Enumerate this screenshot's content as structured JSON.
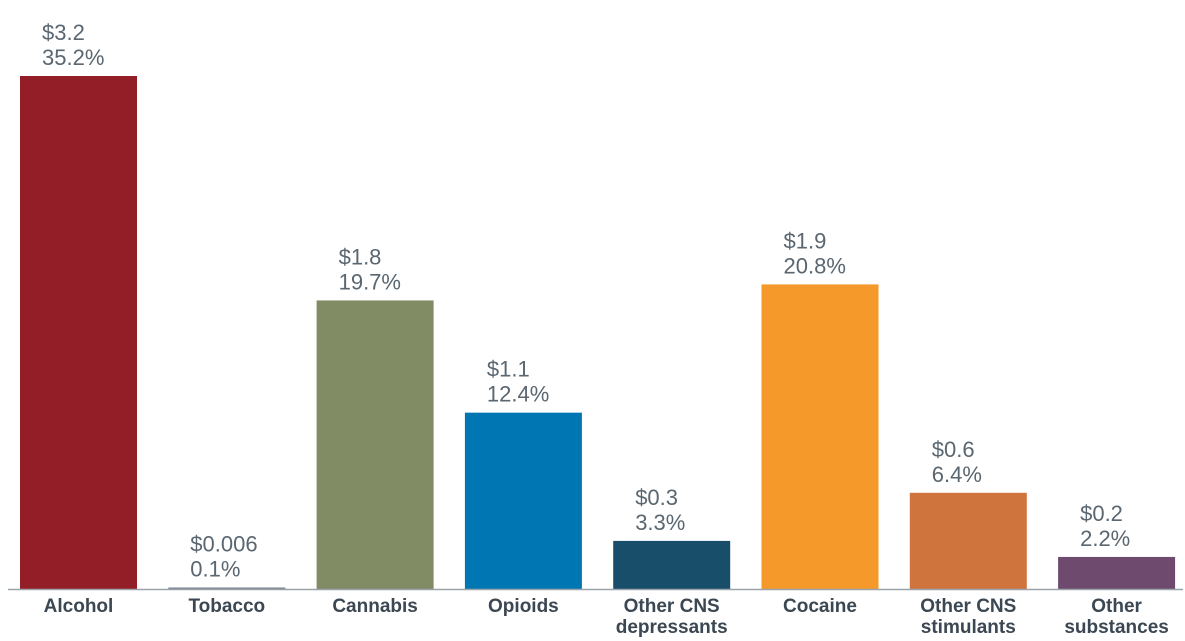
{
  "chart_data": {
    "type": "bar",
    "title": "",
    "xlabel": "",
    "ylabel": "",
    "ylim": [
      0,
      3.2
    ],
    "grid": false,
    "legend": "none",
    "categories": [
      [
        "Alcohol"
      ],
      [
        "Tobacco"
      ],
      [
        "Cannabis"
      ],
      [
        "Opioids"
      ],
      [
        "Other CNS",
        "depressants"
      ],
      [
        "Cocaine"
      ],
      [
        "Other CNS",
        "stimulants"
      ],
      [
        "Other",
        "substances"
      ]
    ],
    "values": [
      3.2,
      0.006,
      1.8,
      1.1,
      0.3,
      1.9,
      0.6,
      0.2
    ],
    "value_labels": [
      "$3.2",
      "$0.006",
      "$1.8",
      "$1.1",
      "$0.3",
      "$1.9",
      "$0.6",
      "$0.2"
    ],
    "percent_labels": [
      "35.2%",
      "0.1%",
      "19.7%",
      "12.4%",
      "3.3%",
      "20.8%",
      "6.4%",
      "2.2%"
    ],
    "percent_values": [
      35.2,
      0.1,
      19.7,
      12.4,
      3.3,
      20.8,
      6.4,
      2.2
    ],
    "colors": [
      "#931e27",
      "#7a8590",
      "#818b64",
      "#0077b3",
      "#194e6b",
      "#f5992a",
      "#d0743d",
      "#6d4a6e"
    ],
    "axis_color": "#9aa2aa"
  }
}
